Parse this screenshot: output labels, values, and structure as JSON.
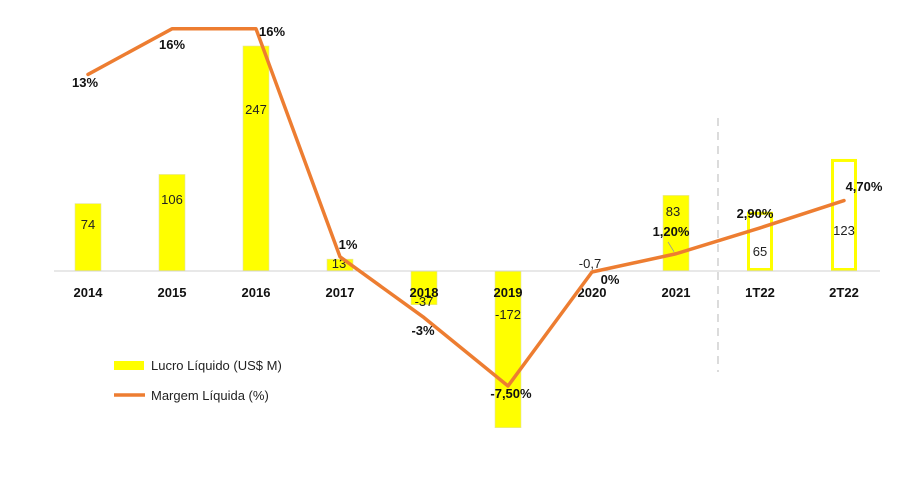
{
  "chart_data": {
    "type": "bar",
    "categories": [
      "2014",
      "2015",
      "2016",
      "2017",
      "2018",
      "2019",
      "2020",
      "2021",
      "1T22",
      "2T22"
    ],
    "series": [
      {
        "name": "Lucro Líquido (US$ M)",
        "type": "bar",
        "values": [
          74,
          106,
          247,
          13,
          -37,
          -172,
          -0.7,
          83,
          65,
          123
        ],
        "labels": [
          "74",
          "106",
          "247",
          "13",
          "-37",
          "-172",
          "-0,7",
          "83",
          "65",
          "123"
        ],
        "color": "#FFFF00",
        "outline_only": [
          false,
          false,
          false,
          false,
          false,
          false,
          false,
          false,
          true,
          true
        ]
      },
      {
        "name": "Margem Líquida (%)",
        "type": "line",
        "values": [
          13,
          16,
          16,
          1,
          -3,
          -7.5,
          0,
          1.2,
          2.9,
          4.7
        ],
        "labels": [
          "13%",
          "16%",
          "16%",
          "1%",
          "-3%",
          "-7,50%",
          "0%",
          "1,20%",
          "2,90%",
          "4,70%"
        ],
        "color": "#ED7D31"
      }
    ],
    "separator_after": "2021",
    "legend_position": "bottom-left",
    "grid": false
  }
}
